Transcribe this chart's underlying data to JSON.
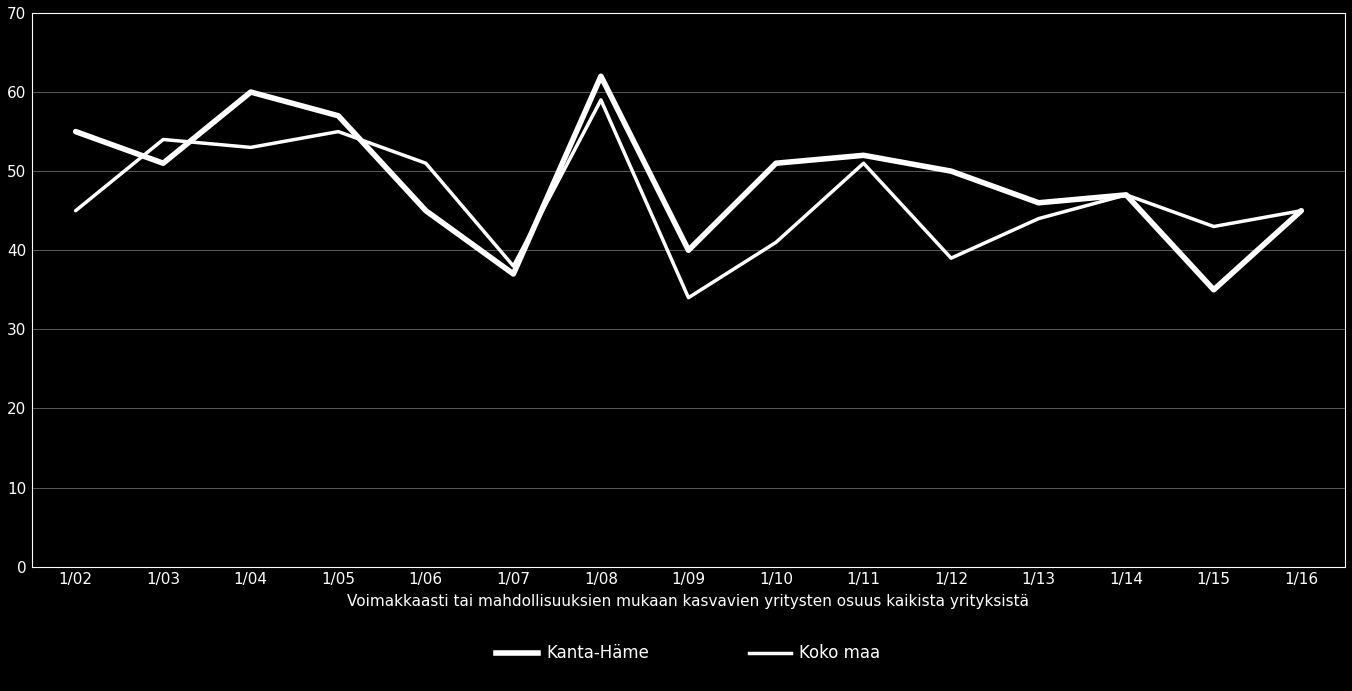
{
  "x_labels": [
    "1/02",
    "1/03",
    "1/04",
    "1/05",
    "1/06",
    "1/07",
    "1/08",
    "1/09",
    "1/10",
    "1/11",
    "1/12",
    "1/13",
    "1/14",
    "1/15",
    "1/16"
  ],
  "kanta_hame": [
    55,
    51,
    60,
    57,
    45,
    37,
    62,
    40,
    51,
    52,
    50,
    46,
    47,
    35,
    45
  ],
  "koko_maa": [
    45,
    54,
    53,
    55,
    51,
    38,
    59,
    34,
    41,
    51,
    39,
    44,
    47,
    43,
    45
  ],
  "line_color": "#ffffff",
  "bg_color": "#000000",
  "grid_color": "#ffffff",
  "text_color": "#ffffff",
  "xlabel": "Voimakkaasti tai mahdollisuuksien mukaan kasvavien yritysten osuus kaikista yrityksistä",
  "legend_kanta": "Kanta-Häme",
  "legend_koko": "Koko maa",
  "ylim": [
    0,
    70
  ],
  "yticks": [
    0,
    10,
    20,
    30,
    40,
    50,
    60,
    70
  ],
  "linewidth": 3.5,
  "marker_size": 0
}
